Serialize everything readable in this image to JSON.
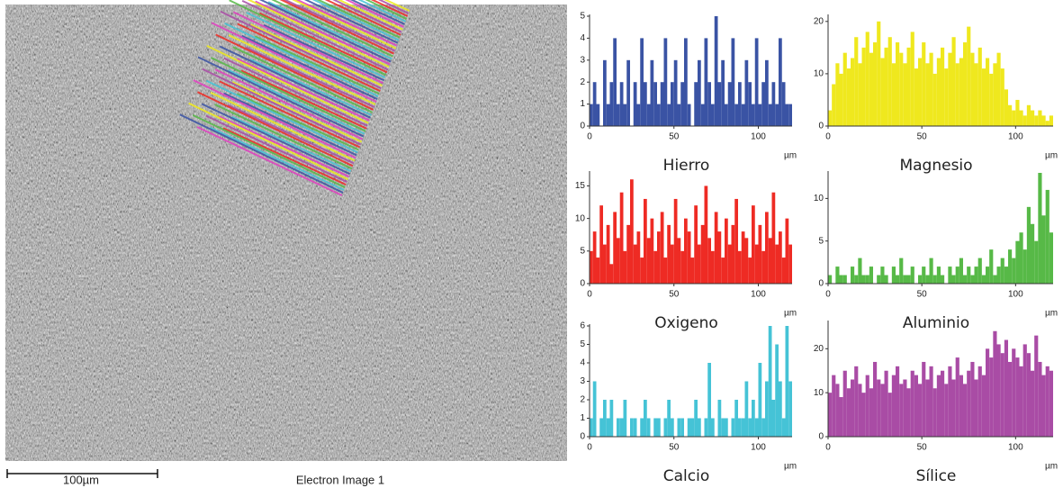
{
  "image": {
    "scale_bar": "100µm",
    "caption": "Electron Image 1"
  },
  "chart_data": [
    {
      "type": "bar",
      "title": "Hierro",
      "x_label": "µm",
      "color": "#3a53a4",
      "x": [
        0,
        2,
        4,
        6,
        8,
        10,
        12,
        14,
        16,
        18,
        20,
        22,
        24,
        26,
        28,
        30,
        32,
        34,
        36,
        38,
        40,
        42,
        44,
        46,
        48,
        50,
        52,
        54,
        56,
        58,
        60,
        62,
        64,
        66,
        68,
        70,
        72,
        74,
        76,
        78,
        80,
        82,
        84,
        86,
        88,
        90,
        92,
        94,
        96,
        98,
        100,
        102,
        104,
        106,
        108,
        110,
        112,
        114,
        116,
        118
      ],
      "values": [
        1,
        2,
        1,
        0,
        3,
        1,
        2,
        4,
        1,
        2,
        1,
        3,
        0,
        2,
        1,
        4,
        2,
        1,
        3,
        2,
        1,
        2,
        4,
        1,
        2,
        3,
        1,
        2,
        4,
        1,
        0,
        2,
        3,
        1,
        4,
        2,
        1,
        5,
        2,
        3,
        1,
        2,
        4,
        1,
        2,
        1,
        3,
        2,
        1,
        4,
        1,
        2,
        3,
        1,
        2,
        1,
        4,
        2,
        1,
        1
      ],
      "xlim": [
        0,
        120
      ],
      "xticks": [
        0,
        50,
        100
      ],
      "ylim": [
        0,
        5
      ],
      "yticks": [
        0,
        1,
        2,
        3,
        4,
        5
      ]
    },
    {
      "type": "bar",
      "title": "Magnesio",
      "x_label": "µm",
      "color": "#efe81e",
      "x": [
        0,
        2,
        4,
        6,
        8,
        10,
        12,
        14,
        16,
        18,
        20,
        22,
        24,
        26,
        28,
        30,
        32,
        34,
        36,
        38,
        40,
        42,
        44,
        46,
        48,
        50,
        52,
        54,
        56,
        58,
        60,
        62,
        64,
        66,
        68,
        70,
        72,
        74,
        76,
        78,
        80,
        82,
        84,
        86,
        88,
        90,
        92,
        94,
        96,
        98,
        100,
        102,
        104,
        106,
        108,
        110,
        112,
        114,
        116,
        118
      ],
      "values": [
        3,
        8,
        12,
        10,
        14,
        11,
        13,
        17,
        12,
        15,
        18,
        14,
        16,
        20,
        13,
        15,
        17,
        12,
        16,
        14,
        12,
        15,
        18,
        11,
        13,
        16,
        12,
        14,
        10,
        13,
        15,
        11,
        14,
        17,
        12,
        13,
        16,
        19,
        14,
        12,
        15,
        11,
        13,
        10,
        12,
        14,
        11,
        7,
        4,
        3,
        5,
        3,
        2,
        4,
        3,
        2,
        3,
        2,
        1,
        2
      ],
      "xlim": [
        0,
        120
      ],
      "xticks": [
        0,
        50,
        100
      ],
      "ylim": [
        0,
        21
      ],
      "yticks": [
        0,
        10,
        20
      ]
    },
    {
      "type": "bar",
      "title": "Oxigeno",
      "x_label": "µm",
      "color": "#ee2b24",
      "x": [
        0,
        2,
        4,
        6,
        8,
        10,
        12,
        14,
        16,
        18,
        20,
        22,
        24,
        26,
        28,
        30,
        32,
        34,
        36,
        38,
        40,
        42,
        44,
        46,
        48,
        50,
        52,
        54,
        56,
        58,
        60,
        62,
        64,
        66,
        68,
        70,
        72,
        74,
        76,
        78,
        80,
        82,
        84,
        86,
        88,
        90,
        92,
        94,
        96,
        98,
        100,
        102,
        104,
        106,
        108,
        110,
        112,
        114,
        116,
        118
      ],
      "values": [
        5,
        8,
        4,
        12,
        6,
        9,
        3,
        11,
        7,
        14,
        5,
        9,
        16,
        6,
        8,
        4,
        13,
        7,
        10,
        5,
        8,
        11,
        4,
        9,
        6,
        13,
        7,
        5,
        10,
        8,
        4,
        12,
        6,
        9,
        15,
        7,
        5,
        11,
        8,
        4,
        10,
        6,
        9,
        13,
        5,
        8,
        7,
        4,
        12,
        6,
        9,
        5,
        11,
        7,
        14,
        6,
        8,
        4,
        10,
        6
      ],
      "xlim": [
        0,
        120
      ],
      "xticks": [
        0,
        50,
        100
      ],
      "ylim": [
        0,
        17
      ],
      "yticks": [
        0,
        5,
        10,
        15
      ]
    },
    {
      "type": "bar",
      "title": "Aluminio",
      "x_label": "µm",
      "color": "#57b947",
      "x": [
        0,
        2,
        4,
        6,
        8,
        10,
        12,
        14,
        16,
        18,
        20,
        22,
        24,
        26,
        28,
        30,
        32,
        34,
        36,
        38,
        40,
        42,
        44,
        46,
        48,
        50,
        52,
        54,
        56,
        58,
        60,
        62,
        64,
        66,
        68,
        70,
        72,
        74,
        76,
        78,
        80,
        82,
        84,
        86,
        88,
        90,
        92,
        94,
        96,
        98,
        100,
        102,
        104,
        106,
        108,
        110,
        112,
        114,
        116,
        118
      ],
      "values": [
        1,
        0,
        2,
        1,
        1,
        0,
        2,
        1,
        3,
        1,
        1,
        2,
        0,
        1,
        2,
        1,
        0,
        2,
        1,
        3,
        1,
        1,
        2,
        0,
        1,
        2,
        1,
        3,
        1,
        2,
        1,
        0,
        2,
        1,
        2,
        3,
        1,
        2,
        1,
        2,
        3,
        1,
        2,
        4,
        1,
        2,
        3,
        2,
        4,
        3,
        5,
        6,
        4,
        9,
        7,
        5,
        13,
        8,
        11,
        6
      ],
      "xlim": [
        0,
        120
      ],
      "xticks": [
        0,
        50,
        100
      ],
      "ylim": [
        0,
        13
      ],
      "yticks": [
        0,
        5,
        10
      ]
    },
    {
      "type": "bar",
      "title": "Calcio",
      "x_label": "µm",
      "color": "#45c3d6",
      "x": [
        0,
        2,
        4,
        6,
        8,
        10,
        12,
        14,
        16,
        18,
        20,
        22,
        24,
        26,
        28,
        30,
        32,
        34,
        36,
        38,
        40,
        42,
        44,
        46,
        48,
        50,
        52,
        54,
        56,
        58,
        60,
        62,
        64,
        66,
        68,
        70,
        72,
        74,
        76,
        78,
        80,
        82,
        84,
        86,
        88,
        90,
        92,
        94,
        96,
        98,
        100,
        102,
        104,
        106,
        108,
        110,
        112,
        114,
        116,
        118
      ],
      "values": [
        1,
        3,
        0,
        1,
        2,
        1,
        2,
        0,
        1,
        1,
        2,
        0,
        1,
        1,
        0,
        1,
        2,
        1,
        0,
        1,
        1,
        0,
        1,
        2,
        1,
        0,
        1,
        1,
        0,
        1,
        1,
        2,
        1,
        0,
        1,
        4,
        1,
        0,
        2,
        1,
        1,
        0,
        1,
        2,
        1,
        1,
        3,
        1,
        2,
        1,
        4,
        1,
        3,
        6,
        2,
        5,
        3,
        1,
        6,
        3
      ],
      "xlim": [
        0,
        120
      ],
      "xticks": [
        0,
        50,
        100
      ],
      "ylim": [
        0,
        6
      ],
      "yticks": [
        0,
        1,
        2,
        3,
        4,
        5,
        6
      ]
    },
    {
      "type": "bar",
      "title": "Sílice",
      "x_label": "µm",
      "color": "#a94ca5",
      "x": [
        0,
        2,
        4,
        6,
        8,
        10,
        12,
        14,
        16,
        18,
        20,
        22,
        24,
        26,
        28,
        30,
        32,
        34,
        36,
        38,
        40,
        42,
        44,
        46,
        48,
        50,
        52,
        54,
        56,
        58,
        60,
        62,
        64,
        66,
        68,
        70,
        72,
        74,
        76,
        78,
        80,
        82,
        84,
        86,
        88,
        90,
        92,
        94,
        96,
        98,
        100,
        102,
        104,
        106,
        108,
        110,
        112,
        114,
        116,
        118
      ],
      "values": [
        10,
        14,
        12,
        9,
        15,
        11,
        13,
        16,
        12,
        10,
        14,
        11,
        17,
        13,
        12,
        15,
        10,
        14,
        16,
        12,
        13,
        11,
        15,
        14,
        12,
        17,
        13,
        16,
        11,
        14,
        15,
        12,
        16,
        13,
        18,
        14,
        12,
        15,
        17,
        13,
        16,
        14,
        20,
        18,
        24,
        21,
        19,
        22,
        17,
        20,
        18,
        16,
        21,
        19,
        15,
        23,
        17,
        14,
        16,
        15
      ],
      "xlim": [
        0,
        120
      ],
      "xticks": [
        0,
        50,
        100
      ],
      "ylim": [
        0,
        26
      ],
      "yticks": [
        0,
        10,
        20
      ]
    }
  ]
}
